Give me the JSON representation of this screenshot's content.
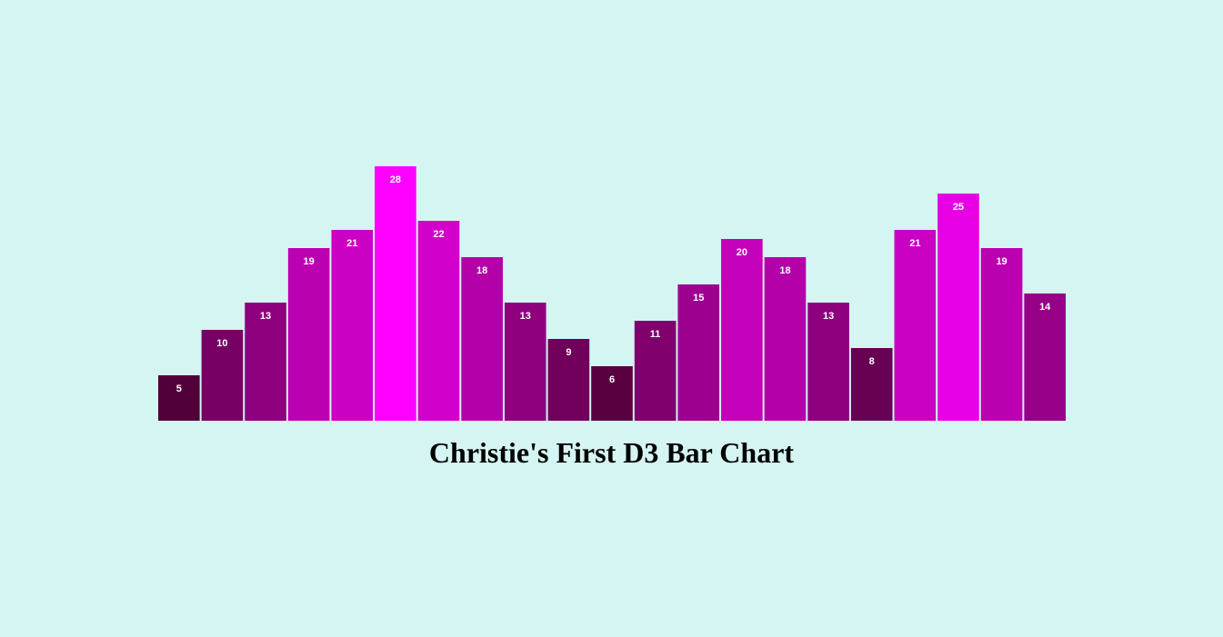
{
  "page": {
    "background_color": "#d5f5f3"
  },
  "chart_data": {
    "type": "bar",
    "title": "Christie's First D3 Bar Chart",
    "xlabel": "",
    "ylabel": "",
    "values": [
      5,
      10,
      13,
      19,
      21,
      28,
      22,
      18,
      13,
      9,
      6,
      11,
      15,
      20,
      18,
      13,
      8,
      21,
      25,
      19,
      14
    ],
    "ylim": [
      0,
      28
    ],
    "grid": false,
    "axes_visible": false,
    "data_labels": true,
    "color_encoding": "bar color intensity scales with value (dark maroon for low values, bright magenta for high values)",
    "color_low": "#4a0030",
    "color_high": "#ff00ff",
    "label_color": "#ffffff"
  }
}
